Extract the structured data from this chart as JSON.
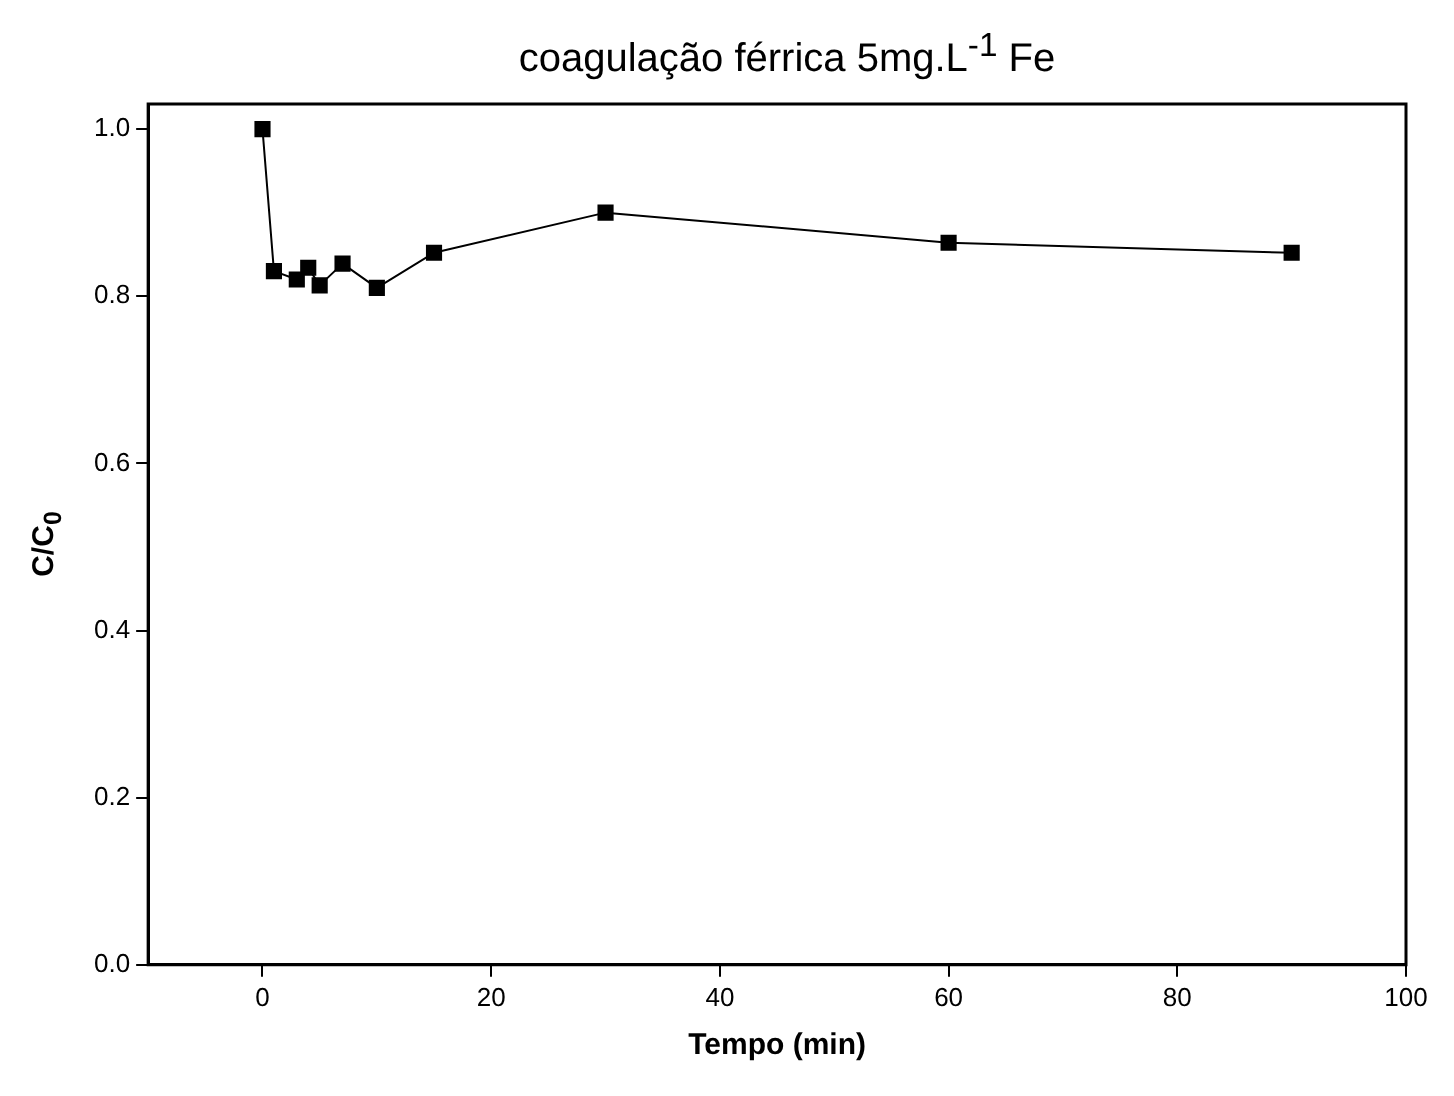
{
  "chart_data": {
    "type": "line",
    "title": "coagulação férrica 5mg.L$^{-1}$ Fe",
    "xlabel": "Tempo (min)",
    "ylabel": "C/C$_{0}$",
    "x": [
      0,
      1,
      3,
      4,
      5,
      7,
      10,
      15,
      30,
      60,
      90
    ],
    "series": [
      {
        "color": "#000000",
        "values": [
          1.0,
          0.83,
          0.82,
          0.834,
          0.813,
          0.839,
          0.81,
          0.852,
          0.9,
          0.864,
          0.852
        ]
      }
    ],
    "xlim": [
      -10,
      100
    ],
    "xticks": [
      0,
      20,
      40,
      60,
      80,
      100
    ],
    "ylim": [
      0,
      1.03
    ],
    "yticks": [
      {
        "value": 0,
        "label": "0.0"
      },
      0.2,
      0.4,
      0.6,
      0.8,
      {
        "value": 1,
        "label": "1.0"
      }
    ],
    "grid": false,
    "legend": false,
    "marker": "square",
    "line_style": "solid"
  }
}
